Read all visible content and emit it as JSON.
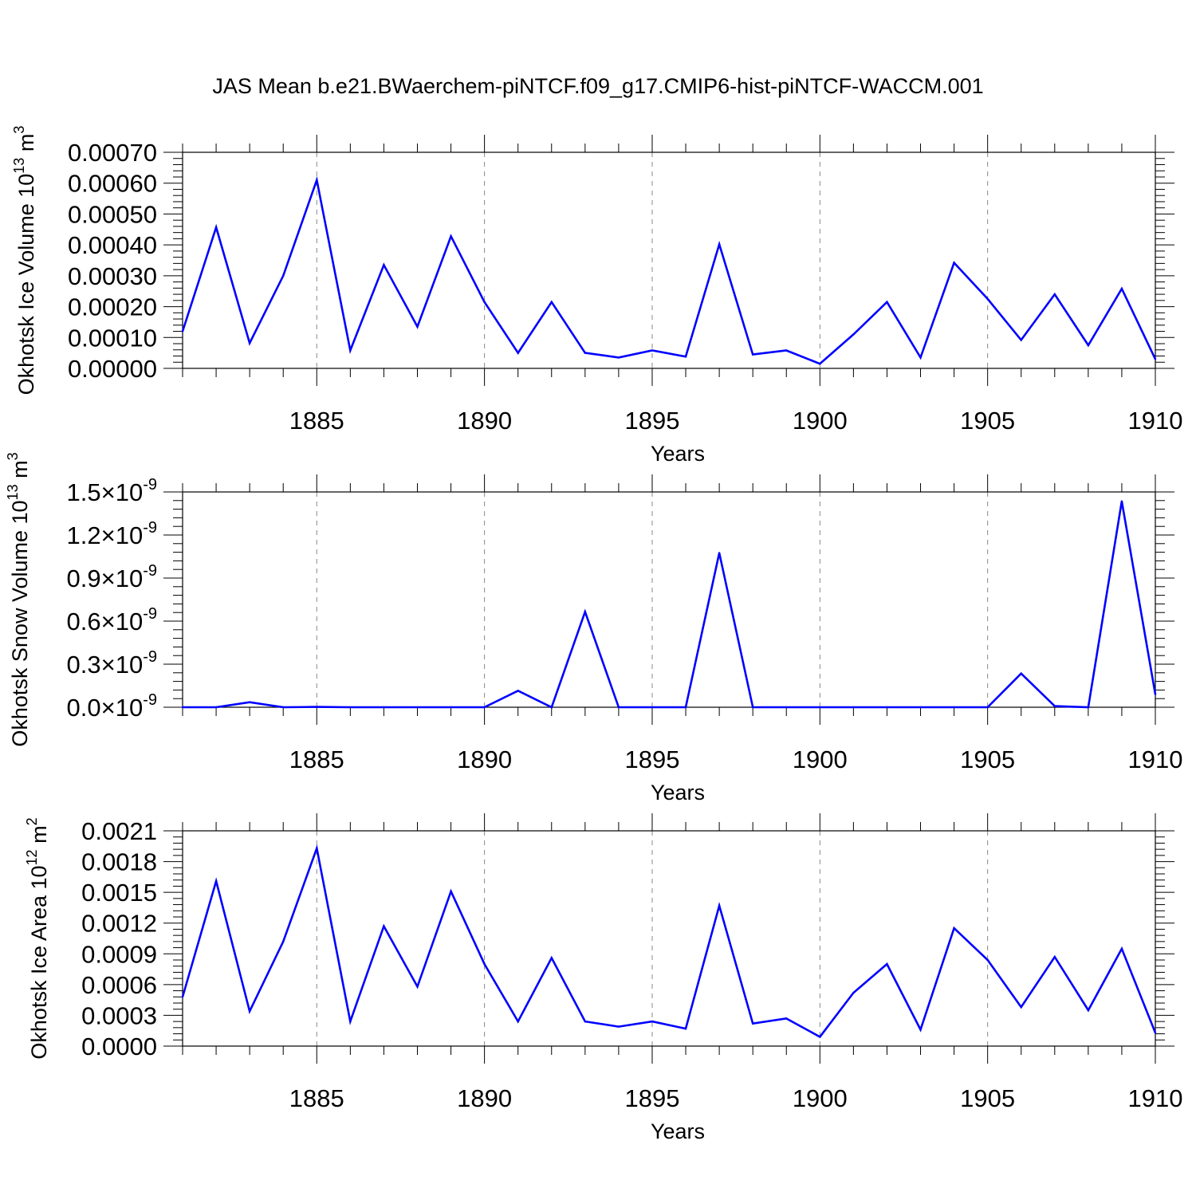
{
  "title": "JAS Mean b.e21.BWaerchem-piNTCF.f09_g17.CMIP6-hist-piNTCF-WACCM.001",
  "colors": {
    "line": "#0000ff",
    "axis": "#000000",
    "grid": "#888888",
    "background": "#ffffff"
  },
  "chart_data": [
    {
      "type": "line",
      "ylabel": "Okhotsk Ice Volume 10",
      "ylabel_exp": "13",
      "ylabel_unit": " m",
      "ylabel_unit_exp": "3",
      "xlabel": "Years",
      "x": [
        1881,
        1882,
        1883,
        1884,
        1885,
        1886,
        1887,
        1888,
        1889,
        1890,
        1891,
        1892,
        1893,
        1894,
        1895,
        1896,
        1897,
        1898,
        1899,
        1900,
        1901,
        1902,
        1903,
        1904,
        1905,
        1906,
        1907,
        1908,
        1909,
        1910
      ],
      "values": [
        0.00012,
        0.000457,
        8.2e-05,
        0.0003,
        0.00061,
        5.8e-05,
        0.000335,
        0.000135,
        0.000428,
        0.000215,
        5e-05,
        0.000215,
        5e-05,
        3.5e-05,
        5.8e-05,
        3.8e-05,
        0.000402,
        4.5e-05,
        5.8e-05,
        1.5e-05,
        0.00011,
        0.000215,
        3.5e-05,
        0.000342,
        0.000225,
        9.2e-05,
        0.00024,
        7.5e-05,
        0.000258,
        3e-05
      ],
      "xlim": [
        1881,
        1910
      ],
      "ylim": [
        0,
        0.0007
      ],
      "yticks": [
        0,
        0.0001,
        0.0002,
        0.0003,
        0.0004,
        0.0005,
        0.0006,
        0.0007
      ],
      "ytick_labels": [
        "0.00000",
        "0.00010",
        "0.00020",
        "0.00030",
        "0.00040",
        "0.00050",
        "0.00060",
        "0.00070"
      ],
      "xticks": [
        1885,
        1890,
        1895,
        1900,
        1905,
        1910
      ],
      "xtick_labels": [
        "1885",
        "1890",
        "1895",
        "1900",
        "1905",
        "1910"
      ],
      "grid": "vertical-dashed"
    },
    {
      "type": "line",
      "ylabel": "Okhotsk Snow Volume 10",
      "ylabel_exp": "13",
      "ylabel_unit": " m",
      "ylabel_unit_exp": "3",
      "xlabel": "Years",
      "x": [
        1881,
        1882,
        1883,
        1884,
        1885,
        1886,
        1887,
        1888,
        1889,
        1890,
        1891,
        1892,
        1893,
        1894,
        1895,
        1896,
        1897,
        1898,
        1899,
        1900,
        1901,
        1902,
        1903,
        1904,
        1905,
        1906,
        1907,
        1908,
        1909,
        1910
      ],
      "values": [
        0,
        0,
        3.5e-11,
        0,
        2e-12,
        0,
        0,
        0,
        0,
        0,
        1.15e-10,
        0,
        6.65e-10,
        0,
        0,
        0,
        1.075e-09,
        0,
        0,
        0,
        0,
        0,
        0,
        0,
        0,
        2.35e-10,
        8e-12,
        0,
        1.435e-09,
        9e-11
      ],
      "xlim": [
        1881,
        1910
      ],
      "ylim": [
        0,
        1.5e-09
      ],
      "yticks": [
        0,
        3e-10,
        6e-10,
        9e-10,
        1.2e-09,
        1.5e-09
      ],
      "ytick_labels": [
        "0.0",
        "0.3",
        "0.6",
        "0.9",
        "1.2",
        "1.5"
      ],
      "ytick_suffix": "×10",
      "ytick_exp": "-9",
      "xticks": [
        1885,
        1890,
        1895,
        1900,
        1905,
        1910
      ],
      "xtick_labels": [
        "1885",
        "1890",
        "1895",
        "1900",
        "1905",
        "1910"
      ],
      "grid": "vertical-dashed"
    },
    {
      "type": "line",
      "ylabel": "Okhotsk Ice Area 10",
      "ylabel_exp": "12",
      "ylabel_unit": " m",
      "ylabel_unit_exp": "2",
      "xlabel": "Years",
      "x": [
        1881,
        1882,
        1883,
        1884,
        1885,
        1886,
        1887,
        1888,
        1889,
        1890,
        1891,
        1892,
        1893,
        1894,
        1895,
        1896,
        1897,
        1898,
        1899,
        1900,
        1901,
        1902,
        1903,
        1904,
        1905,
        1906,
        1907,
        1908,
        1909,
        1910
      ],
      "values": [
        0.00048,
        0.00161,
        0.00034,
        0.00102,
        0.00193,
        0.00024,
        0.00117,
        0.00058,
        0.00151,
        0.0008,
        0.00024,
        0.00086,
        0.00024,
        0.00019,
        0.00024,
        0.00017,
        0.00137,
        0.00022,
        0.00027,
        9e-05,
        0.00052,
        0.0008,
        0.00016,
        0.00115,
        0.00084,
        0.00038,
        0.00087,
        0.00035,
        0.00095,
        0.00013
      ],
      "xlim": [
        1881,
        1910
      ],
      "ylim": [
        0,
        0.0021
      ],
      "yticks": [
        0,
        0.0003,
        0.0006,
        0.0009,
        0.0012,
        0.0015,
        0.0018,
        0.0021
      ],
      "ytick_labels": [
        "0.0000",
        "0.0003",
        "0.0006",
        "0.0009",
        "0.0012",
        "0.0015",
        "0.0018",
        "0.0021"
      ],
      "xticks": [
        1885,
        1890,
        1895,
        1900,
        1905,
        1910
      ],
      "xtick_labels": [
        "1885",
        "1890",
        "1895",
        "1900",
        "1905",
        "1910"
      ],
      "grid": "vertical-dashed"
    }
  ]
}
